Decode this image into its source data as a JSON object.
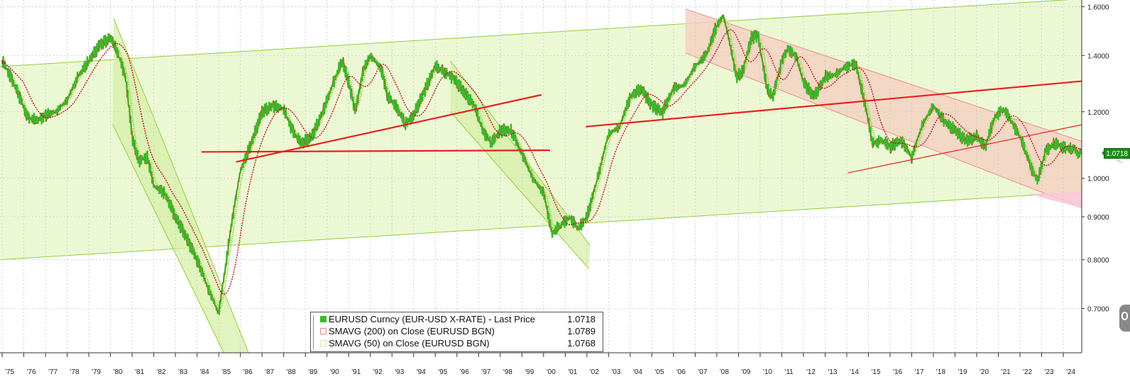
{
  "chart_data": {
    "type": "line",
    "title": "",
    "x_ticks": [
      "'75",
      "'76",
      "'77",
      "'78",
      "'79",
      "'80",
      "'81",
      "'82",
      "'83",
      "'84",
      "'85",
      "'86",
      "'87",
      "'88",
      "'89",
      "'90",
      "'91",
      "'92",
      "'93",
      "'94",
      "'95",
      "'96",
      "'97",
      "'98",
      "'99",
      "'00",
      "'01",
      "'02",
      "'03",
      "'04",
      "'05",
      "'06",
      "'07",
      "'08",
      "'09",
      "'10",
      "'11",
      "'12",
      "'13",
      "'14",
      "'15",
      "'16",
      "'17",
      "'18",
      "'19",
      "'20",
      "'21",
      "'22",
      "'23",
      "'24"
    ],
    "y_ticks": [
      "1.6000",
      "1.4000",
      "1.2000",
      "1.0000",
      "0.9000",
      "0.8000",
      "0.7000"
    ],
    "y_scale": "log",
    "ylim": [
      0.62,
      1.63
    ],
    "xlim": [
      1974.9,
      2024.85
    ],
    "grid": true,
    "legend_position": "bottom-center",
    "colors": {
      "price": "#3cb82c",
      "price_dark": "#e8221c",
      "sma200": "#b8141c",
      "sma50": "#9ad94a",
      "channel_fill": "#eaf7cf",
      "channel_line": "#8fcf3c",
      "down_fill": "#f4cfc0",
      "down_line": "#f28a8a",
      "trendline": "#e8221c",
      "pink_fill": "#f9c8d8",
      "last_tag": "#1b8f1b"
    },
    "series": [
      {
        "name": "EURUSD Curncy (EUR-USD X-RATE) - Last Price",
        "last": "1.0718",
        "x": [
          1975.0,
          1975.4,
          1975.8,
          1976.2,
          1976.6,
          1977.0,
          1977.5,
          1978.0,
          1978.5,
          1979.0,
          1979.5,
          1980.0,
          1980.3,
          1980.7,
          1981.0,
          1981.3,
          1981.7,
          1982.0,
          1982.5,
          1983.0,
          1983.5,
          1984.0,
          1984.5,
          1985.0,
          1985.3,
          1985.7,
          1986.0,
          1986.5,
          1987.0,
          1987.5,
          1988.0,
          1988.4,
          1988.8,
          1989.3,
          1989.8,
          1990.3,
          1990.7,
          1991.0,
          1991.3,
          1991.7,
          1992.0,
          1992.5,
          1992.8,
          1993.2,
          1993.6,
          1994.0,
          1994.5,
          1995.0,
          1995.4,
          1995.8,
          1996.3,
          1996.8,
          1997.2,
          1997.6,
          1998.0,
          1998.5,
          1999.0,
          1999.5,
          2000.0,
          2000.4,
          2000.8,
          2001.2,
          2001.6,
          2002.0,
          2002.5,
          2003.0,
          2003.5,
          2004.0,
          2004.5,
          2005.0,
          2005.5,
          2006.0,
          2006.5,
          2007.0,
          2007.5,
          2008.0,
          2008.3,
          2008.6,
          2008.9,
          2009.2,
          2009.6,
          2009.9,
          2010.3,
          2010.6,
          2011.0,
          2011.3,
          2011.7,
          2012.0,
          2012.5,
          2013.0,
          2013.5,
          2014.0,
          2014.4,
          2014.8,
          2015.2,
          2015.6,
          2016.0,
          2016.5,
          2017.0,
          2017.5,
          2018.0,
          2018.5,
          2019.0,
          2019.5,
          2020.0,
          2020.4,
          2020.8,
          2021.2,
          2021.6,
          2022.0,
          2022.4,
          2022.8,
          2023.2,
          2023.6,
          2024.0,
          2024.4,
          2024.85
        ],
        "values": [
          1.38,
          1.32,
          1.25,
          1.18,
          1.17,
          1.19,
          1.2,
          1.24,
          1.32,
          1.38,
          1.44,
          1.47,
          1.42,
          1.32,
          1.12,
          1.05,
          1.06,
          0.98,
          0.96,
          0.9,
          0.85,
          0.8,
          0.74,
          0.69,
          0.78,
          0.92,
          1.02,
          1.1,
          1.2,
          1.22,
          1.21,
          1.14,
          1.1,
          1.12,
          1.2,
          1.3,
          1.38,
          1.3,
          1.2,
          1.35,
          1.4,
          1.35,
          1.25,
          1.22,
          1.16,
          1.19,
          1.27,
          1.36,
          1.34,
          1.32,
          1.27,
          1.22,
          1.14,
          1.1,
          1.14,
          1.14,
          1.07,
          1.0,
          0.96,
          0.86,
          0.88,
          0.9,
          0.87,
          0.9,
          1.0,
          1.13,
          1.15,
          1.25,
          1.28,
          1.22,
          1.2,
          1.28,
          1.29,
          1.36,
          1.4,
          1.52,
          1.56,
          1.45,
          1.32,
          1.34,
          1.47,
          1.48,
          1.28,
          1.25,
          1.38,
          1.43,
          1.39,
          1.3,
          1.25,
          1.32,
          1.33,
          1.36,
          1.37,
          1.24,
          1.1,
          1.11,
          1.09,
          1.11,
          1.06,
          1.16,
          1.22,
          1.17,
          1.14,
          1.11,
          1.12,
          1.09,
          1.18,
          1.21,
          1.17,
          1.12,
          1.05,
          0.99,
          1.08,
          1.1,
          1.09,
          1.08,
          1.072
        ]
      },
      {
        "name": "SMAVG (200)  on Close (EURUSD BGN)",
        "last": "1.0789"
      },
      {
        "name": "SMAVG (50)  on Close (EURUSD BGN)",
        "last": "1.0768"
      }
    ],
    "overlays": {
      "long_channel": {
        "upper": [
          [
            1974.9,
            1.358
          ],
          [
            2024.85,
            1.635
          ]
        ],
        "lower": [
          [
            1974.9,
            0.8
          ],
          [
            2024.85,
            0.963
          ]
        ]
      },
      "down_channel_1980": {
        "upper": [
          [
            1980.15,
            1.55
          ],
          [
            1986.6,
            0.6
          ]
        ],
        "lower": [
          [
            1980.1,
            1.16
          ],
          [
            1985.5,
            0.6
          ]
        ]
      },
      "down_channel_1995": {
        "upper": [
          [
            1995.7,
            1.38
          ],
          [
            2002.15,
            0.832
          ]
        ],
        "lower": [
          [
            1995.7,
            1.2
          ],
          [
            2002.1,
            0.78
          ]
        ]
      },
      "down_channel_2008": {
        "upper": [
          [
            2006.55,
            1.59
          ],
          [
            2024.85,
            1.107
          ]
        ],
        "lower": [
          [
            2006.55,
            1.41
          ],
          [
            2024.85,
            0.922
          ]
        ]
      },
      "trendlines": [
        [
          [
            1984.2,
            1.075
          ],
          [
            2000.3,
            1.08
          ]
        ],
        [
          [
            1985.8,
            1.046
          ],
          [
            1999.9,
            1.257
          ]
        ],
        [
          [
            2001.95,
            1.152
          ],
          [
            2024.85,
            1.305
          ]
        ],
        [
          [
            2014.05,
            1.015
          ],
          [
            2024.85,
            1.158
          ]
        ]
      ]
    }
  },
  "legend": {
    "items": [
      {
        "label": "EURUSD Curncy (EUR-USD X-RATE) - Last Price",
        "value": "1.0718",
        "swatch": "solid-green"
      },
      {
        "label": "SMAVG (200)  on Close (EURUSD BGN)",
        "value": "1.0789",
        "swatch": "dotted-red"
      },
      {
        "label": "SMAVG (50)  on Close (EURUSD BGN)",
        "value": "1.0768",
        "swatch": "dotted-green"
      }
    ]
  },
  "last_price_tag": "1.0718",
  "side_controls": {
    "scroll_icon": "scroll-handle-icon",
    "fork_icon": "fork-icon"
  }
}
